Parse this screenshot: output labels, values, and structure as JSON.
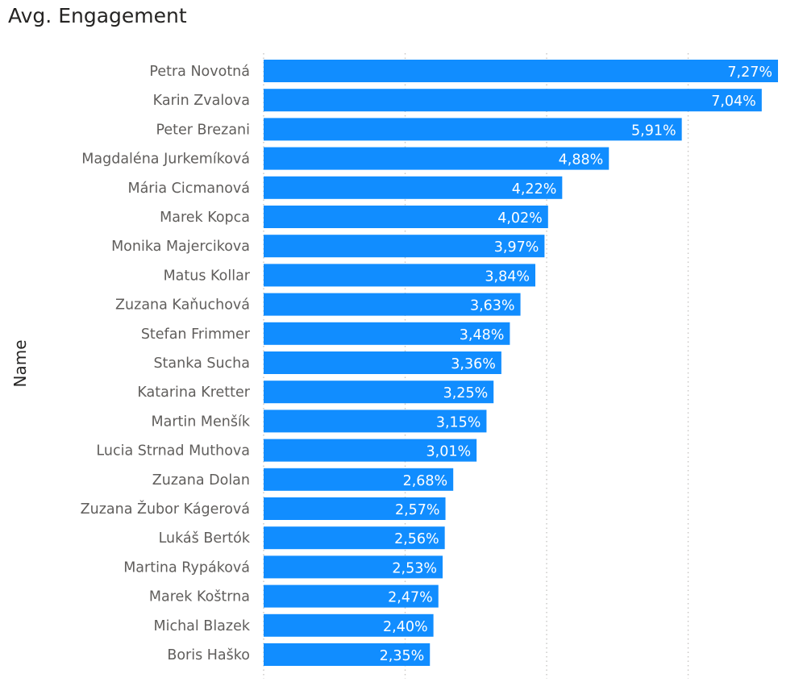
{
  "chart_data": {
    "type": "bar",
    "orientation": "horizontal",
    "title": "Avg. Engagement",
    "ylabel": "Name",
    "xlabel": "",
    "bar_color": "#118DFF",
    "grid": true,
    "xlim": [
      0,
      7.27
    ],
    "gridline_values": [
      0,
      2,
      4,
      6
    ],
    "value_format": "percent-comma-decimal",
    "categories": [
      "Petra Novotná",
      "Karin Zvalova",
      "Peter Brezani",
      "Magdaléna Jurkemíková",
      "Mária Cicmanová",
      "Marek Kopca",
      "Monika Majercikova",
      "Matus Kollar",
      "Zuzana Kaňuchová",
      "Stefan Frimmer",
      "Stanka Sucha",
      "Katarina Kretter",
      "Martin Menšík",
      "Lucia Strnad Muthova",
      "Zuzana Dolan",
      "Zuzana Žubor Kágerová",
      "Lukáš Bertók",
      "Martina Rypáková",
      "Marek Koštrna",
      "Michal Blazek",
      "Boris Haško"
    ],
    "values": [
      7.27,
      7.04,
      5.91,
      4.88,
      4.22,
      4.02,
      3.97,
      3.84,
      3.63,
      3.48,
      3.36,
      3.25,
      3.15,
      3.01,
      2.68,
      2.57,
      2.56,
      2.53,
      2.47,
      2.4,
      2.35
    ],
    "data_labels": [
      "7,27%",
      "7,04%",
      "5,91%",
      "4,88%",
      "4,22%",
      "4,02%",
      "3,97%",
      "3,84%",
      "3,63%",
      "3,48%",
      "3,36%",
      "3,25%",
      "3,15%",
      "3,01%",
      "2,68%",
      "2,57%",
      "2,56%",
      "2,53%",
      "2,47%",
      "2,40%",
      "2,35%"
    ]
  }
}
